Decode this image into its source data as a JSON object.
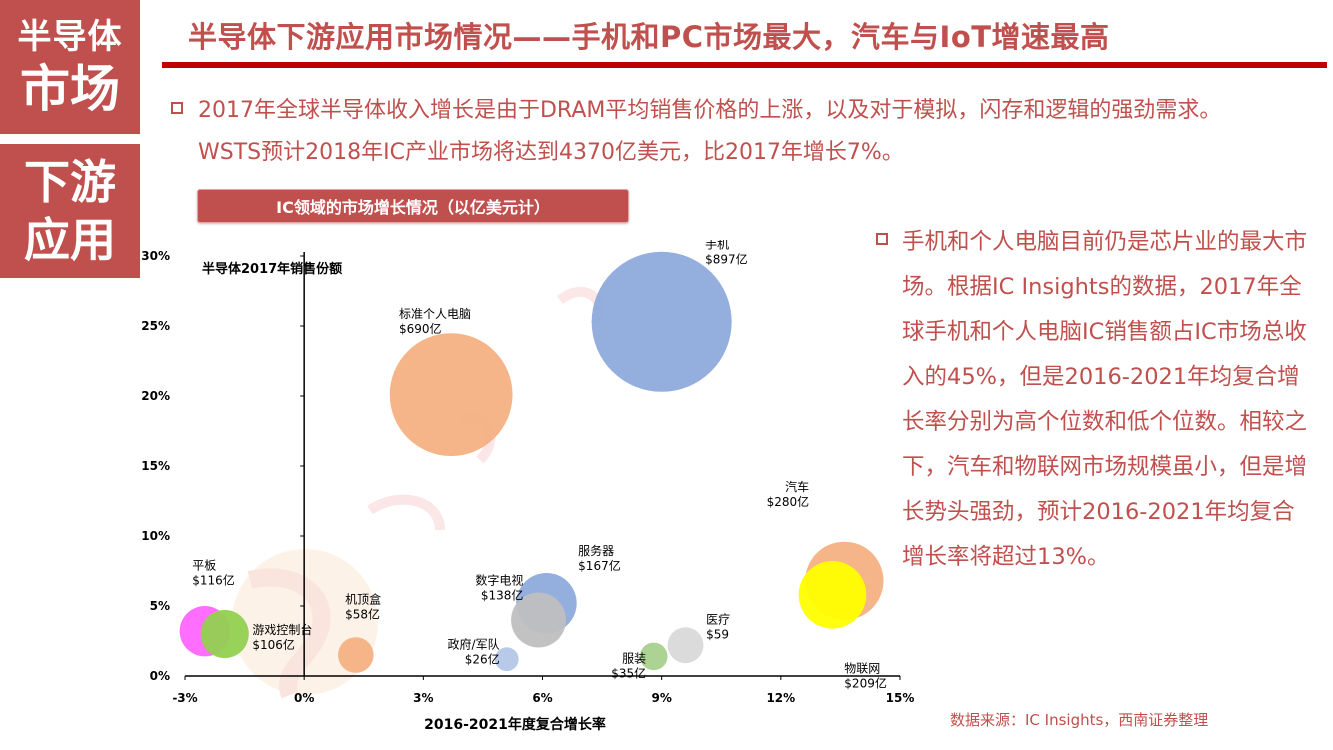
{
  "side": {
    "top_line1": "半导体",
    "top_line2": "市场",
    "bottom_line1": "下游",
    "bottom_line2": "应用"
  },
  "header": {
    "title": "半导体下游应用市场情况——手机和PC市场最大，汽车与IoT增速最高"
  },
  "body": {
    "paragraph1": "2017年全球半导体收入增长是由于DRAM平均销售价格的上涨，以及对于模拟，闪存和逻辑的强劲需求。WSTS预计2018年IC产业市场将达到4370亿美元，比2017年增长7%。",
    "paragraph2": "手机和个人电脑目前仍是芯片业的最大市场。根据IC Insights的数据，2017年全球手机和个人电脑IC销售额占IC市场总收入的45%，但是2016-2021年均复合增长率分别为高个位数和低个位数。相较之下，汽车和物联网市场规模虽小，但是增长势头强劲，预计2016-2021年均复合增长率将超过13%。"
  },
  "chart_banner": "IC领域的市场增长情况（以亿美元计）",
  "source": "数据来源：IC Insights，西南证券整理",
  "colors": {
    "brand_red": "#c0504d",
    "title_line": "#c00000"
  },
  "chart_data": {
    "type": "scatter",
    "subtype": "bubble",
    "title": "",
    "ylabel": "半导体2017年销售份额",
    "xlabel": "2016-2021年度复合增长率",
    "xlim": [
      -3,
      15
    ],
    "ylim": [
      0,
      30
    ],
    "xticks": [
      -3,
      0,
      3,
      6,
      9,
      12,
      15
    ],
    "yticks": [
      0,
      5,
      10,
      15,
      20,
      25,
      30
    ],
    "xtick_labels": [
      "-3%",
      "0%",
      "3%",
      "6%",
      "9%",
      "12%",
      "15%"
    ],
    "ytick_labels": [
      "0%",
      "5%",
      "10%",
      "15%",
      "20%",
      "25%",
      "30%"
    ],
    "size_unit": "亿美元",
    "series": [
      {
        "name": "手机",
        "label": "$897亿",
        "x": 9.0,
        "y": 25.3,
        "size": 897,
        "color": "#8eaadb"
      },
      {
        "name": "标准个人电脑",
        "label": "$690亿",
        "x": 3.7,
        "y": 20.1,
        "size": 690,
        "color": "#f4b183"
      },
      {
        "name": "汽车",
        "label": "$280亿",
        "x": 13.6,
        "y": 6.8,
        "size": 280,
        "color": "#f4b183"
      },
      {
        "name": "物联网",
        "label": "$209亿",
        "x": 13.3,
        "y": 5.8,
        "size": 209,
        "color": "#ffff00"
      },
      {
        "name": "服务器",
        "label": "$167亿",
        "x": 6.1,
        "y": 5.2,
        "size": 167,
        "color": "#8eaadb"
      },
      {
        "name": "数字电视",
        "label": "$138亿",
        "x": 5.9,
        "y": 4.0,
        "size": 138,
        "color": "#bfbfbf"
      },
      {
        "name": "平板",
        "label": "$116亿",
        "x": -2.5,
        "y": 3.2,
        "size": 116,
        "color": "#ff66ff"
      },
      {
        "name": "游戏控制台",
        "label": "$106亿",
        "x": -2.0,
        "y": 3.0,
        "size": 106,
        "color": "#92d050"
      },
      {
        "name": "机顶盒",
        "label": "$58亿",
        "x": 1.3,
        "y": 1.5,
        "size": 58,
        "color": "#f4b183"
      },
      {
        "name": "医疗",
        "label": "$59",
        "x": 9.6,
        "y": 2.2,
        "size": 59,
        "color": "#d9d9d9"
      },
      {
        "name": "服装",
        "label": "$35亿",
        "x": 8.8,
        "y": 1.4,
        "size": 35,
        "color": "#a9d18e"
      },
      {
        "name": "政府/军队",
        "label": "$26亿",
        "x": 5.1,
        "y": 1.2,
        "size": 26,
        "color": "#b4c7e7"
      }
    ]
  }
}
